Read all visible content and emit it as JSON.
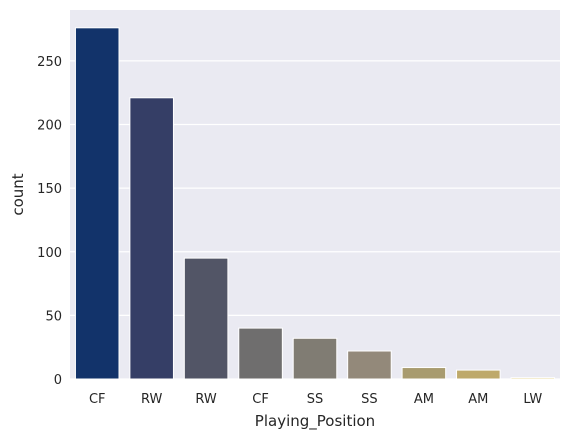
{
  "chart_data": {
    "type": "bar",
    "categories": [
      "CF",
      "RW",
      "RW",
      "CF",
      "SS",
      "SS",
      "AM",
      "AM",
      "LW"
    ],
    "values": [
      276,
      221,
      95,
      40,
      32,
      22,
      9,
      7,
      1
    ],
    "title": "",
    "xlabel": "Playing_Position",
    "ylabel": "count",
    "ylim": [
      0,
      290
    ],
    "yticks": [
      0,
      50,
      100,
      150,
      200,
      250
    ],
    "grid": true,
    "background_color": "#eaeaf2",
    "bar_colors": [
      "#12336a",
      "#353e66",
      "#525566",
      "#6f6e6e",
      "#807c73",
      "#93897a",
      "#a89b6f",
      "#bea96a",
      "#dac05c"
    ]
  }
}
